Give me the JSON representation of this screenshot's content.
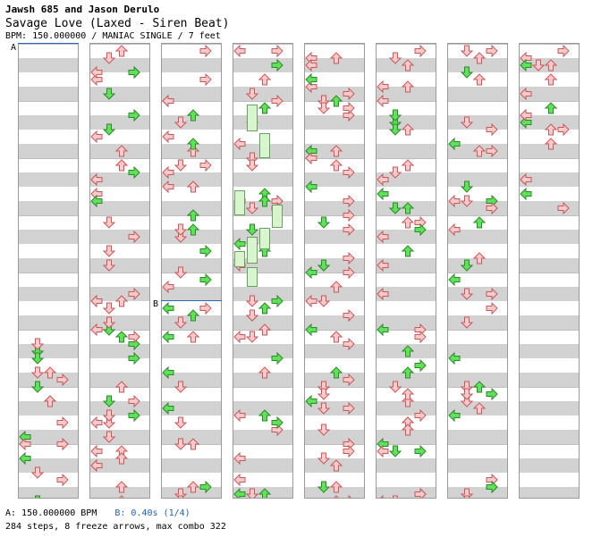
{
  "header": {
    "artist": "Jawsh 685 and Jason Derulo",
    "title": "Savage Love (Laxed - Siren Beat)",
    "meta": "BPM: 150.000000 / MANIAC SINGLE / 7 feet"
  },
  "markers": {
    "a_label": "A",
    "b_label": "B"
  },
  "footer": {
    "bpm_text": "A: 150.000000 BPM",
    "b_text": "B: 0.40s (1/4)",
    "stats": "284 steps, 8 freeze arrows, max combo 322"
  },
  "colors": {
    "red_fill": "#f7c9c9",
    "red_stroke": "#c8585c",
    "green_fill": "#5fe15a",
    "green_stroke": "#2c8a28",
    "stripe": "#d2d2d2",
    "marker": "#2c67b8"
  },
  "chart": {
    "columns": 8,
    "measures_per_column": 8
  }
}
